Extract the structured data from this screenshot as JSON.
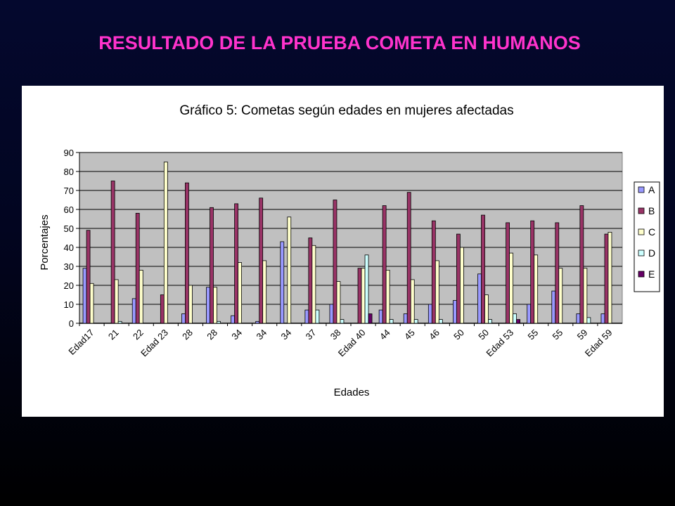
{
  "slide": {
    "title": "RESULTADO DE LA PRUEBA COMETA EN HUMANOS"
  },
  "colors": {
    "A": "#9999ff",
    "B": "#993366",
    "C": "#ffffcc",
    "D": "#ccffff",
    "E": "#660066",
    "plot_bg": "#c0c0c0"
  },
  "chart_data": {
    "type": "bar",
    "title": "Gráfico 5: Cometas según edades en mujeres afectadas",
    "xlabel": "Edades",
    "ylabel": "Porcentajes",
    "ylim": [
      0,
      90
    ],
    "yticks": [
      0,
      10,
      20,
      30,
      40,
      50,
      60,
      70,
      80,
      90
    ],
    "grid": true,
    "legend": "right",
    "categories": [
      "Edad17",
      "21",
      "22",
      "Edad 23",
      "28",
      "28",
      "34",
      "34",
      "34",
      "37",
      "38",
      "Edad 40",
      "44",
      "45",
      "46",
      "50",
      "50",
      "Edad 53",
      "55",
      "55",
      "59",
      "Edad 59"
    ],
    "series": [
      {
        "name": "A",
        "values": [
          29,
          0,
          13,
          0,
          5,
          19,
          4,
          1,
          43,
          7,
          10,
          0,
          7,
          5,
          10,
          12,
          26,
          0,
          10,
          17,
          5,
          5
        ]
      },
      {
        "name": "B",
        "values": [
          49,
          75,
          58,
          15,
          74,
          61,
          63,
          66,
          0,
          45,
          65,
          29,
          62,
          69,
          54,
          47,
          57,
          53,
          54,
          53,
          62,
          47
        ]
      },
      {
        "name": "C",
        "values": [
          21,
          23,
          28,
          85,
          20,
          19,
          32,
          33,
          56,
          41,
          22,
          29,
          28,
          23,
          33,
          40,
          15,
          37,
          36,
          29,
          29,
          48
        ]
      },
      {
        "name": "D",
        "values": [
          0,
          1,
          0,
          0,
          0,
          1,
          0,
          0,
          0,
          7,
          2,
          36,
          2,
          2,
          2,
          0,
          2,
          5,
          0,
          0,
          3,
          0
        ]
      },
      {
        "name": "E",
        "values": [
          0,
          0,
          0,
          0,
          0,
          0,
          0,
          0,
          0,
          0,
          0,
          5,
          0,
          0,
          0,
          0,
          0,
          2,
          0,
          0,
          0,
          0
        ]
      }
    ]
  }
}
